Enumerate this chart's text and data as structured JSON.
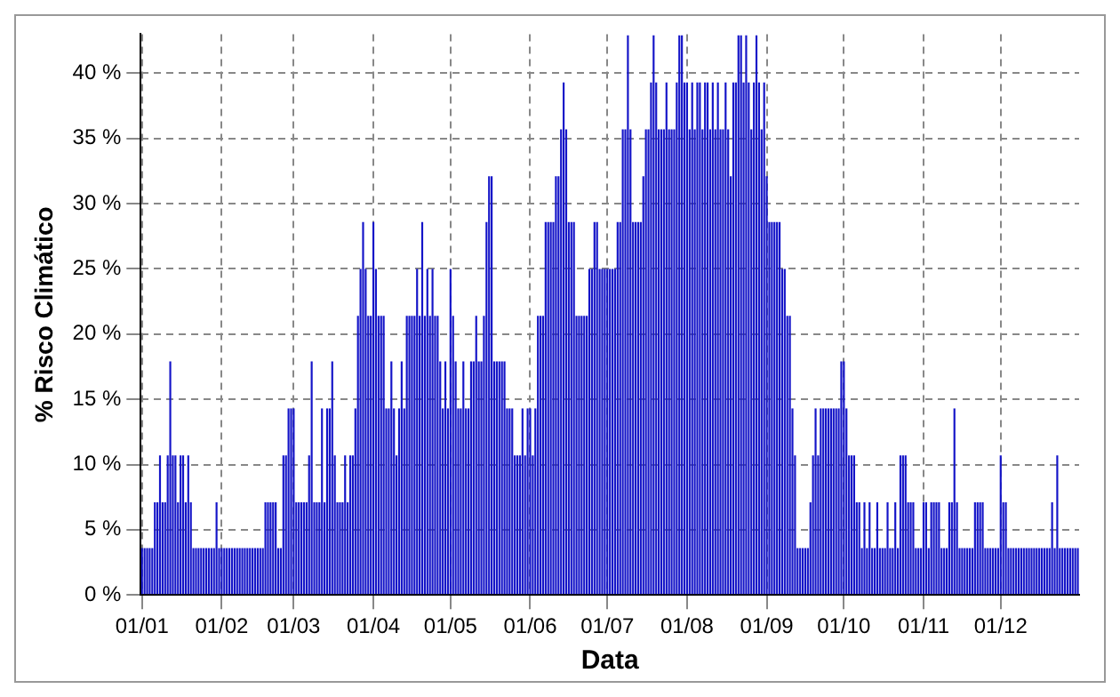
{
  "chart_data": {
    "type": "bar",
    "xlabel": "Data",
    "ylabel": "% Risco Climático",
    "categories": [
      "01/01",
      null,
      null,
      null,
      null,
      null,
      null,
      null,
      null,
      null,
      null,
      null,
      null,
      null,
      null,
      null,
      null,
      null,
      null,
      null,
      null,
      null,
      null,
      null,
      null,
      null,
      null,
      null,
      null,
      null,
      null,
      "01/02",
      null,
      null,
      null,
      null,
      null,
      null,
      null,
      null,
      null,
      null,
      null,
      null,
      null,
      null,
      null,
      null,
      null,
      null,
      null,
      null,
      null,
      null,
      null,
      null,
      null,
      null,
      null,
      "01/03",
      null,
      null,
      null,
      null,
      null,
      null,
      null,
      null,
      null,
      null,
      null,
      null,
      null,
      null,
      null,
      null,
      null,
      null,
      null,
      null,
      null,
      null,
      null,
      null,
      null,
      null,
      null,
      null,
      null,
      null,
      "01/04",
      null,
      null,
      null,
      null,
      null,
      null,
      null,
      null,
      null,
      null,
      null,
      null,
      null,
      null,
      null,
      null,
      null,
      null,
      null,
      null,
      null,
      null,
      null,
      null,
      null,
      null,
      null,
      null,
      null,
      "01/05",
      null,
      null,
      null,
      null,
      null,
      null,
      null,
      null,
      null,
      null,
      null,
      null,
      null,
      null,
      null,
      null,
      null,
      null,
      null,
      null,
      null,
      null,
      null,
      null,
      null,
      null,
      null,
      null,
      null,
      null,
      "01/06",
      null,
      null,
      null,
      null,
      null,
      null,
      null,
      null,
      null,
      null,
      null,
      null,
      null,
      null,
      null,
      null,
      null,
      null,
      null,
      null,
      null,
      null,
      null,
      null,
      null,
      null,
      null,
      null,
      null,
      "01/07",
      null,
      null,
      null,
      null,
      null,
      null,
      null,
      null,
      null,
      null,
      null,
      null,
      null,
      null,
      null,
      null,
      null,
      null,
      null,
      null,
      null,
      null,
      null,
      null,
      null,
      null,
      null,
      null,
      null,
      null,
      "01/08",
      null,
      null,
      null,
      null,
      null,
      null,
      null,
      null,
      null,
      null,
      null,
      null,
      null,
      null,
      null,
      null,
      null,
      null,
      null,
      null,
      null,
      null,
      null,
      null,
      null,
      null,
      null,
      null,
      null,
      null,
      "01/09",
      null,
      null,
      null,
      null,
      null,
      null,
      null,
      null,
      null,
      null,
      null,
      null,
      null,
      null,
      null,
      null,
      null,
      null,
      null,
      null,
      null,
      null,
      null,
      null,
      null,
      null,
      null,
      null,
      null,
      "01/10",
      null,
      null,
      null,
      null,
      null,
      null,
      null,
      null,
      null,
      null,
      null,
      null,
      null,
      null,
      null,
      null,
      null,
      null,
      null,
      null,
      null,
      null,
      null,
      null,
      null,
      null,
      null,
      null,
      null,
      null,
      "01/11",
      null,
      null,
      null,
      null,
      null,
      null,
      null,
      null,
      null,
      null,
      null,
      null,
      null,
      null,
      null,
      null,
      null,
      null,
      null,
      null,
      null,
      null,
      null,
      null,
      null,
      null,
      null,
      null,
      null,
      "01/12",
      null,
      null,
      null,
      null,
      null,
      null,
      null,
      null,
      null,
      null,
      null,
      null,
      null,
      null,
      null,
      null,
      null,
      null,
      null,
      null,
      null,
      null,
      null,
      null,
      null,
      null,
      null,
      null,
      null,
      null
    ],
    "values": [
      3.6,
      3.6,
      3.6,
      3.6,
      3.6,
      7.1,
      7.1,
      10.7,
      7.1,
      7.1,
      10.7,
      17.9,
      10.7,
      10.7,
      7.1,
      10.7,
      10.7,
      7.1,
      10.7,
      7.1,
      3.6,
      3.6,
      3.6,
      3.6,
      3.6,
      3.6,
      3.6,
      3.6,
      3.6,
      7.1,
      3.6,
      3.6,
      3.6,
      3.6,
      3.6,
      3.6,
      3.6,
      3.6,
      3.6,
      3.6,
      3.6,
      3.6,
      3.6,
      3.6,
      3.6,
      3.6,
      3.6,
      3.6,
      7.1,
      7.1,
      7.1,
      7.1,
      7.1,
      3.6,
      3.6,
      10.7,
      10.7,
      14.3,
      14.3,
      14.3,
      7.1,
      7.1,
      7.1,
      7.1,
      7.1,
      10.7,
      17.9,
      7.1,
      7.1,
      7.1,
      14.3,
      7.1,
      14.3,
      14.3,
      17.9,
      10.7,
      7.1,
      7.1,
      7.1,
      10.7,
      7.1,
      10.7,
      10.7,
      14.3,
      21.4,
      25,
      28.6,
      25,
      21.4,
      21.4,
      28.6,
      25,
      21.4,
      21.4,
      21.4,
      14.3,
      14.3,
      17.9,
      14.3,
      10.7,
      14.3,
      17.9,
      14.3,
      21.4,
      21.4,
      21.4,
      21.4,
      25,
      21.4,
      28.6,
      21.4,
      25,
      21.4,
      25,
      21.4,
      21.4,
      17.9,
      14.3,
      17.9,
      14.3,
      25,
      21.4,
      17.9,
      14.3,
      14.3,
      17.9,
      14.3,
      14.3,
      17.9,
      17.9,
      21.4,
      17.9,
      17.9,
      21.4,
      28.6,
      32.1,
      32.1,
      17.9,
      17.9,
      17.9,
      17.9,
      17.9,
      14.3,
      14.3,
      14.3,
      10.7,
      10.7,
      10.7,
      14.3,
      10.7,
      14.3,
      14.3,
      10.7,
      14.3,
      21.4,
      21.4,
      21.4,
      28.6,
      28.6,
      28.6,
      28.6,
      32.1,
      32.1,
      35.7,
      39.3,
      35.7,
      28.6,
      28.6,
      28.6,
      21.4,
      21.4,
      21.4,
      21.4,
      21.4,
      25,
      25,
      28.6,
      28.6,
      25,
      25,
      25,
      25,
      25,
      25,
      25,
      28.6,
      28.6,
      35.7,
      35.7,
      42.9,
      35.7,
      28.6,
      28.6,
      28.6,
      28.6,
      32.1,
      35.7,
      35.7,
      39.3,
      42.9,
      39.3,
      35.7,
      35.7,
      35.7,
      39.3,
      35.7,
      35.7,
      35.7,
      39.3,
      42.9,
      42.9,
      39.3,
      39.3,
      35.7,
      39.3,
      35.7,
      39.3,
      39.3,
      35.7,
      39.3,
      39.3,
      35.7,
      39.3,
      35.7,
      39.3,
      35.7,
      35.7,
      39.3,
      35.7,
      32.1,
      39.3,
      39.3,
      42.9,
      42.9,
      39.3,
      42.9,
      39.3,
      35.7,
      39.3,
      42.9,
      39.3,
      35.7,
      39.3,
      32.1,
      28.6,
      28.6,
      28.6,
      28.6,
      28.6,
      25,
      25,
      21.4,
      21.4,
      14.3,
      10.7,
      3.6,
      3.6,
      3.6,
      3.6,
      3.6,
      7.1,
      10.7,
      14.3,
      10.7,
      14.3,
      14.3,
      14.3,
      14.3,
      14.3,
      14.3,
      14.3,
      14.3,
      17.9,
      17.9,
      14.3,
      10.7,
      10.7,
      10.7,
      7.1,
      7.1,
      3.6,
      7.1,
      3.6,
      7.1,
      3.6,
      3.6,
      7.1,
      3.6,
      3.6,
      3.6,
      7.1,
      3.6,
      3.6,
      7.1,
      3.6,
      10.7,
      10.7,
      10.7,
      7.1,
      7.1,
      7.1,
      3.6,
      3.6,
      3.6,
      7.1,
      7.1,
      3.6,
      7.1,
      7.1,
      7.1,
      7.1,
      3.6,
      3.6,
      3.6,
      7.1,
      7.1,
      14.3,
      7.1,
      3.6,
      3.6,
      3.6,
      3.6,
      3.6,
      3.6,
      7.1,
      7.1,
      7.1,
      7.1,
      3.6,
      3.6,
      3.6,
      3.6,
      3.6,
      3.6,
      10.7,
      7.1,
      7.1,
      3.6,
      3.6,
      3.6,
      3.6,
      3.6,
      3.6,
      3.6,
      3.6,
      3.6,
      3.6,
      3.6,
      3.6,
      3.6,
      3.6,
      3.6,
      3.6,
      3.6,
      7.1,
      3.6,
      10.7,
      3.6,
      3.6,
      3.6,
      3.6,
      3.6,
      3.6,
      3.6,
      3.6
    ],
    "color": "#1414c8",
    "ylim": [
      0,
      43
    ],
    "yticks": [
      {
        "value": 0,
        "label": "0 %"
      },
      {
        "value": 5,
        "label": "5 %"
      },
      {
        "value": 10,
        "label": "10 %"
      },
      {
        "value": 15,
        "label": "15 %"
      },
      {
        "value": 20,
        "label": "20 %"
      },
      {
        "value": 25,
        "label": "25 %"
      },
      {
        "value": 30,
        "label": "30 %"
      },
      {
        "value": 35,
        "label": "35 %"
      },
      {
        "value": 40,
        "label": "40 %"
      }
    ],
    "grid": true,
    "legend": false
  }
}
